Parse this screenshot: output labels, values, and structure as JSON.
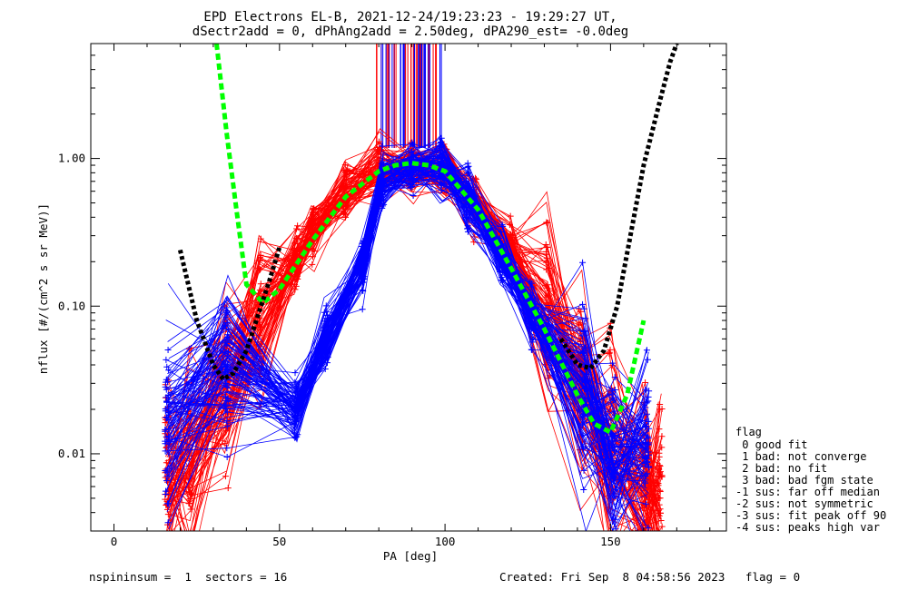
{
  "title_line1": "EPD Electrons EL-B, 2021-12-24/19:23:23 - 19:29:27 UT,",
  "title_line2": "dSectr2add = 0, dPhAng2add = 2.50deg, dPA290_est=  -0.0deg",
  "footer": {
    "left": "nspininsum =  1  sectors = 16",
    "right": "Created: Fri Sep  8 04:58:56 2023   flag = 0"
  },
  "legend": {
    "title": "flag",
    "items": [
      " 0 good fit",
      " 1 bad: not converge",
      " 2 bad: no fit",
      " 3 bad: bad fgm state",
      "-1 sus: far off median",
      "-2 sus: not symmetric",
      "-3 sus: fit peak off 90",
      "-4 sus: peaks high var"
    ]
  },
  "colors": {
    "red": "#ff0000",
    "blue": "#0000ff",
    "green": "#00ff00",
    "black": "#000000"
  },
  "chart_data": {
    "type": "line",
    "xlabel": "PA [deg]",
    "ylabel": "nflux [#/(cm^2 s sr MeV)]",
    "xlim": [
      -7,
      185
    ],
    "ylim": [
      0.003,
      6
    ],
    "yscale": "log",
    "x_ticks": [
      0,
      50,
      100,
      150
    ],
    "x_tick_labels": [
      "0",
      "50",
      "100",
      "150"
    ],
    "y_ticks": [
      0.01,
      0.1,
      1.0
    ],
    "y_tick_labels": [
      "0.01",
      "0.10",
      "1.00"
    ],
    "series": [
      {
        "color": "red",
        "marker": "+",
        "x": [
          16,
          23,
          34,
          44,
          55,
          60,
          70,
          80,
          90,
          100,
          109,
          120,
          131,
          141,
          150,
          160,
          165
        ],
        "median": [
          0.007,
          0.01,
          0.03,
          0.08,
          0.2,
          0.32,
          0.6,
          0.85,
          0.85,
          0.85,
          0.5,
          0.25,
          0.09,
          0.03,
          0.01,
          0.006,
          0.006
        ]
      },
      {
        "color": "blue",
        "marker": "+",
        "x": [
          16,
          34,
          55,
          64,
          75,
          81,
          90,
          99,
          107,
          117,
          126,
          142,
          151,
          161
        ],
        "median": [
          0.015,
          0.045,
          0.02,
          0.06,
          0.2,
          0.7,
          0.9,
          0.88,
          0.55,
          0.23,
          0.09,
          0.025,
          0.01,
          0.012
        ]
      },
      {
        "color": "green",
        "style": "dashed",
        "x": [
          31,
          34,
          37,
          40,
          45,
          50,
          60,
          70,
          80,
          85,
          90,
          95,
          100,
          110,
          120,
          130,
          140,
          145,
          150,
          155,
          160
        ],
        "y": [
          6.0,
          1.5,
          0.45,
          0.14,
          0.105,
          0.13,
          0.28,
          0.55,
          0.82,
          0.9,
          0.93,
          0.9,
          0.82,
          0.45,
          0.18,
          0.07,
          0.025,
          0.016,
          0.014,
          0.025,
          0.08
        ]
      },
      {
        "color": "black",
        "style": "dotted",
        "x": [
          20,
          25,
          30,
          33,
          36,
          40,
          47,
          50,
          135,
          140,
          144,
          148,
          152,
          156,
          160,
          165,
          168,
          170
        ],
        "y": [
          0.24,
          0.08,
          0.04,
          0.032,
          0.035,
          0.05,
          0.15,
          0.25,
          0.06,
          0.04,
          0.038,
          0.05,
          0.1,
          0.3,
          0.9,
          2.5,
          4.5,
          6.0
        ]
      }
    ]
  }
}
